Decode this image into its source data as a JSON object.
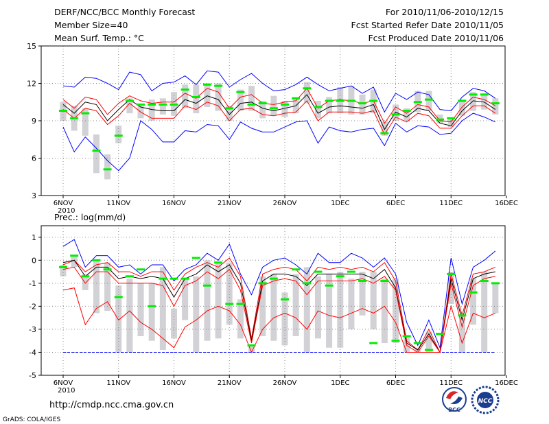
{
  "header": {
    "title": "DERF/NCC/BCC Monthly Forecast",
    "members": "Member Size=40",
    "variable": "Mean Surf. Temp.: °C",
    "period": "For 2010/11/06-2010/12/15",
    "refer": "Fcst Started Refer Date 2010/11/05",
    "produced": "Fcst Produced Date 2010/11/06"
  },
  "footer": {
    "url": "http://cmdp.ncc.cma.gov.cn",
    "credit": "GrADS: COLA/IGES",
    "logo_bcc": "BCC",
    "logo_ncc": "NCC"
  },
  "colors": {
    "envelope": "#0000ff",
    "spread": "#ff0000",
    "mean": "#000000",
    "box": "#d2d2d6",
    "median": "#00ee00",
    "grid": "#888888"
  },
  "chart_data": [
    {
      "type": "line",
      "title": "Mean Surf. Temp.: °C",
      "xlabel": "",
      "ylabel": "",
      "ylim": [
        3,
        15
      ],
      "yticks": [
        "3",
        "6",
        "9",
        "12",
        "15"
      ],
      "x_tick_labels": [
        "6NOV",
        "11NOV",
        "16NOV",
        "21NOV",
        "26NOV",
        "1DEC",
        "6DEC",
        "11DEC",
        "16DEC"
      ],
      "x_year_label": "2010",
      "grid": true,
      "days": 40,
      "series": [
        {
          "name": "max",
          "color": "blue",
          "values": [
            11.8,
            11.7,
            12.5,
            12.4,
            12.0,
            11.5,
            12.9,
            12.7,
            11.4,
            12.0,
            12.1,
            12.6,
            11.9,
            13.0,
            12.9,
            11.7,
            12.3,
            12.8,
            12.0,
            11.4,
            11.5,
            11.9,
            12.5,
            11.9,
            11.4,
            11.6,
            11.8,
            11.2,
            11.7,
            9.7,
            11.2,
            10.7,
            11.3,
            11.1,
            9.9,
            9.8,
            10.9,
            11.6,
            11.4,
            10.8
          ]
        },
        {
          "name": "p75",
          "color": "red",
          "values": [
            10.7,
            10.0,
            10.9,
            10.7,
            9.5,
            10.4,
            11.0,
            10.6,
            10.4,
            10.5,
            10.5,
            11.2,
            10.8,
            11.6,
            11.3,
            10.0,
            10.9,
            11.1,
            10.4,
            10.3,
            10.5,
            10.6,
            11.6,
            10.0,
            10.6,
            10.7,
            10.6,
            10.4,
            10.6,
            8.8,
            10.1,
            9.6,
            10.3,
            10.1,
            9.0,
            8.9,
            10.1,
            10.9,
            10.7,
            10.2
          ]
        },
        {
          "name": "mean",
          "color": "black",
          "values": [
            10.3,
            9.6,
            10.5,
            10.3,
            9.0,
            9.9,
            10.7,
            10.1,
            9.9,
            9.8,
            9.8,
            10.7,
            10.4,
            11.0,
            10.7,
            9.5,
            10.4,
            10.5,
            10.0,
            9.8,
            10.0,
            10.2,
            11.1,
            9.6,
            10.1,
            10.2,
            10.1,
            10.0,
            10.3,
            8.3,
            9.7,
            9.3,
            10.0,
            9.8,
            8.8,
            8.6,
            9.8,
            10.6,
            10.5,
            9.9
          ]
        },
        {
          "name": "p25",
          "color": "red",
          "values": [
            9.9,
            9.2,
            10.0,
            9.8,
            8.7,
            9.4,
            10.4,
            9.7,
            9.2,
            9.2,
            9.2,
            10.2,
            9.9,
            10.5,
            10.2,
            9.0,
            9.9,
            10.0,
            9.5,
            9.4,
            9.6,
            9.7,
            10.6,
            9.0,
            9.7,
            9.7,
            9.7,
            9.6,
            9.8,
            7.9,
            9.3,
            8.9,
            9.6,
            9.4,
            8.4,
            8.4,
            9.4,
            10.2,
            10.2,
            9.6
          ]
        },
        {
          "name": "min",
          "color": "blue",
          "values": [
            8.5,
            6.5,
            7.7,
            6.8,
            5.8,
            5.0,
            6.0,
            9.0,
            8.3,
            7.3,
            7.3,
            8.2,
            8.1,
            8.7,
            8.6,
            7.5,
            8.9,
            8.4,
            8.1,
            8.1,
            8.5,
            8.9,
            9.0,
            7.2,
            8.5,
            8.2,
            8.1,
            8.3,
            8.4,
            7.0,
            8.8,
            8.1,
            8.6,
            8.5,
            7.9,
            8.0,
            9.0,
            9.6,
            9.3,
            8.9
          ]
        }
      ],
      "boxes": {
        "low": [
          9.0,
          8.2,
          7.8,
          4.8,
          4.3,
          7.2,
          9.6,
          9.2,
          9.0,
          9.5,
          9.4,
          10.0,
          9.6,
          10.1,
          9.8,
          9.0,
          9.8,
          9.8,
          9.2,
          9.4,
          9.3,
          9.6,
          10.4,
          9.2,
          9.6,
          9.6,
          9.5,
          9.5,
          9.6,
          7.8,
          9.0,
          9.0,
          9.7,
          9.8,
          8.8,
          8.5,
          9.4,
          9.8,
          9.9,
          9.5
        ],
        "high": [
          10.5,
          10.2,
          10.0,
          7.9,
          6.3,
          8.6,
          10.8,
          10.2,
          10.7,
          10.8,
          11.3,
          11.9,
          11.9,
          12.0,
          12.0,
          10.2,
          11.5,
          11.8,
          10.6,
          11.0,
          10.6,
          10.9,
          12.1,
          10.6,
          10.9,
          11.7,
          11.8,
          11.1,
          11.5,
          8.9,
          10.3,
          10.0,
          11.4,
          11.4,
          9.5,
          9.2,
          10.7,
          11.3,
          11.2,
          10.8
        ],
        "median": [
          9.8,
          9.2,
          9.6,
          6.6,
          5.1,
          7.8,
          10.6,
          10.3,
          10.3,
          10.3,
          10.3,
          11.5,
          10.9,
          11.9,
          11.8,
          10.0,
          11.3,
          10.3,
          10.4,
          10.0,
          10.3,
          10.8,
          11.6,
          10.1,
          10.6,
          10.6,
          10.6,
          10.4,
          10.6,
          8.0,
          9.5,
          9.8,
          10.5,
          10.7,
          9.1,
          9.2,
          10.6,
          11.1,
          11.1,
          10.4
        ]
      }
    },
    {
      "type": "line",
      "title": "Prec.: log(mm/d)",
      "xlabel": "",
      "ylabel": "",
      "ylim": [
        -5,
        1.5
      ],
      "yticks": [
        "-5",
        "-4",
        "-3",
        "-2",
        "-1",
        "0",
        "1"
      ],
      "x_tick_labels": [
        "6NOV",
        "11NOV",
        "16NOV",
        "21NOV",
        "26NOV",
        "1DEC",
        "6DEC",
        "11DEC",
        "16DEC"
      ],
      "x_year_label": "2010",
      "grid": true,
      "days": 40,
      "baseline": -4,
      "series": [
        {
          "name": "max",
          "color": "blue",
          "values": [
            0.6,
            0.9,
            -0.3,
            0.2,
            0.2,
            -0.3,
            -0.2,
            -0.6,
            -0.2,
            -0.2,
            -0.9,
            -0.4,
            -0.2,
            0.3,
            0.0,
            0.7,
            -0.6,
            -1.5,
            -0.3,
            0.0,
            0.1,
            -0.2,
            -0.6,
            0.3,
            -0.1,
            -0.1,
            0.3,
            0.1,
            -0.3,
            0.1,
            -0.6,
            -2.7,
            -3.7,
            -2.6,
            -3.8,
            0.1,
            -1.9,
            -0.3,
            0.0,
            0.4
          ]
        },
        {
          "name": "p75",
          "color": "red",
          "values": [
            -0.2,
            0.0,
            -0.5,
            -0.2,
            -0.1,
            -0.5,
            -0.5,
            -0.7,
            -0.5,
            -0.5,
            -1.3,
            -0.6,
            -0.3,
            -0.1,
            -0.3,
            0.1,
            -0.7,
            -3.4,
            -0.6,
            -0.4,
            -0.3,
            -0.4,
            -0.9,
            -0.3,
            -0.4,
            -0.3,
            -0.4,
            -0.3,
            -0.5,
            -0.1,
            -0.9,
            -3.5,
            -3.9,
            -3.0,
            -4.0,
            -0.6,
            -2.4,
            -0.6,
            -0.5,
            -0.3
          ]
        },
        {
          "name": "mean",
          "color": "black",
          "values": [
            -0.1,
            -0.0,
            -0.7,
            -0.3,
            -0.3,
            -0.8,
            -0.7,
            -0.8,
            -0.7,
            -0.8,
            -1.6,
            -0.8,
            -0.6,
            -0.2,
            -0.5,
            -0.2,
            -1.0,
            -3.5,
            -0.9,
            -0.6,
            -0.6,
            -0.7,
            -1.1,
            -0.6,
            -0.6,
            -0.6,
            -0.6,
            -0.6,
            -0.8,
            -0.4,
            -1.2,
            -3.6,
            -3.9,
            -3.2,
            -4.0,
            -0.8,
            -2.6,
            -0.8,
            -0.6,
            -0.5
          ]
        },
        {
          "name": "p25",
          "color": "red",
          "values": [
            -0.4,
            -0.3,
            -1.0,
            -0.5,
            -0.5,
            -1.0,
            -1.0,
            -1.0,
            -1.0,
            -1.1,
            -2.0,
            -1.1,
            -0.9,
            -0.5,
            -0.8,
            -0.4,
            -1.3,
            -3.6,
            -1.1,
            -0.9,
            -0.8,
            -0.9,
            -1.5,
            -0.9,
            -0.9,
            -0.9,
            -0.9,
            -0.8,
            -1.0,
            -0.7,
            -1.3,
            -3.7,
            -4.0,
            -3.3,
            -4.0,
            -1.0,
            -2.9,
            -1.1,
            -0.8,
            -0.7
          ]
        },
        {
          "name": "min",
          "color": "red",
          "values": [
            -1.3,
            -1.2,
            -2.8,
            -2.1,
            -1.8,
            -2.6,
            -2.2,
            -2.7,
            -3.0,
            -3.4,
            -3.8,
            -2.9,
            -2.6,
            -2.2,
            -2.0,
            -2.2,
            -2.8,
            -4.0,
            -3.0,
            -2.5,
            -2.3,
            -2.5,
            -3.0,
            -2.2,
            -2.4,
            -2.5,
            -2.3,
            -2.1,
            -2.3,
            -2.0,
            -2.7,
            -4.0,
            -4.0,
            -4.0,
            -4.0,
            -2.0,
            -3.6,
            -2.3,
            -2.5,
            -2.3
          ]
        }
      ],
      "boxes": {
        "low": [
          -0.7,
          -0.3,
          -1.3,
          -2.3,
          -2.2,
          -4.0,
          -4.0,
          -3.3,
          -3.5,
          -3.9,
          -3.4,
          -2.6,
          -4.0,
          -3.5,
          -3.4,
          -2.8,
          -3.4,
          -4.0,
          -3.3,
          -3.5,
          -3.7,
          -3.3,
          -4.0,
          -3.4,
          -3.8,
          -3.8,
          -3.0,
          -2.4,
          -3.0,
          -3.6,
          -3.6,
          -4.0,
          -4.0,
          -4.0,
          -4.0,
          -1.9,
          -4.0,
          -2.8,
          -4.0,
          -2.3
        ],
        "high": [
          -0.2,
          0.2,
          -0.6,
          0.0,
          -0.1,
          -1.1,
          -0.8,
          -1.0,
          -1.0,
          -0.3,
          -2.1,
          -0.8,
          -0.7,
          0.0,
          -0.1,
          -0.1,
          -1.7,
          -3.7,
          -0.7,
          -0.6,
          -1.4,
          -0.6,
          -0.3,
          -0.7,
          -0.6,
          -0.5,
          -0.8,
          -0.5,
          -0.5,
          -0.8,
          -0.8,
          -3.3,
          -3.8,
          -3.1,
          -4.0,
          -0.5,
          -2.5,
          -0.8,
          -0.5,
          -1.0
        ],
        "median": [
          -0.3,
          0.2,
          -0.7,
          0.0,
          -0.4,
          -1.6,
          -0.7,
          -0.4,
          -2.0,
          -0.8,
          -0.8,
          -0.8,
          0.1,
          -1.1,
          -0.1,
          -1.9,
          -1.9,
          -3.7,
          -1.0,
          -0.8,
          -1.7,
          -0.4,
          -1.0,
          -0.5,
          -1.1,
          -0.7,
          -0.5,
          -0.9,
          -3.6,
          -0.9,
          -3.5,
          -3.3,
          -3.6,
          -3.9,
          -3.2,
          -0.6,
          -2.4,
          -1.4,
          -0.9,
          -1.0
        ]
      }
    }
  ]
}
